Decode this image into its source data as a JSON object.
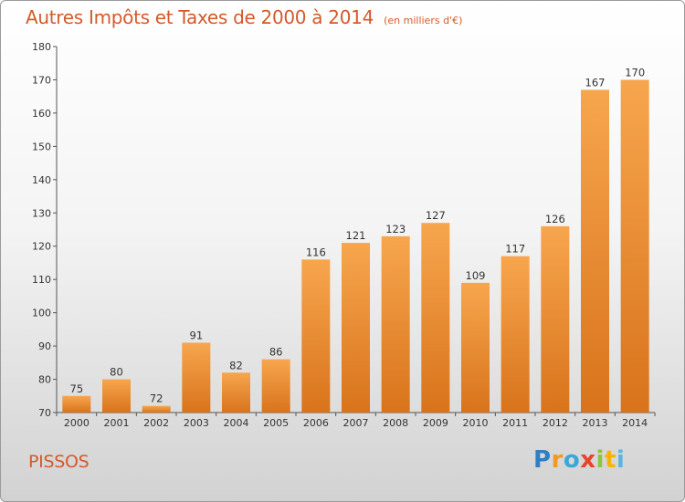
{
  "header": {
    "title": "Autres Impôts et Taxes de 2000 à 2014",
    "subtitle": "(en milliers d'€)"
  },
  "footer": {
    "commune": "PISSOS",
    "logo_text": "Proxiti"
  },
  "colors": {
    "title": "#d45a2a",
    "bar_light": "#f7a64e",
    "bar_dark": "#d8731b"
  },
  "chart_data": {
    "type": "bar",
    "categories": [
      "2000",
      "2001",
      "2002",
      "2003",
      "2004",
      "2005",
      "2006",
      "2007",
      "2008",
      "2009",
      "2010",
      "2011",
      "2012",
      "2013",
      "2014"
    ],
    "values": [
      75,
      80,
      72,
      91,
      82,
      86,
      116,
      121,
      123,
      127,
      109,
      117,
      126,
      167,
      170
    ],
    "title": "Autres Impôts et Taxes de 2000 à 2014",
    "subtitle": "(en milliers d'€)",
    "ylim": [
      70,
      180
    ],
    "yticks": [
      70,
      80,
      90,
      100,
      110,
      120,
      130,
      140,
      150,
      160,
      170,
      180
    ],
    "grid": false,
    "data_labels": true
  }
}
